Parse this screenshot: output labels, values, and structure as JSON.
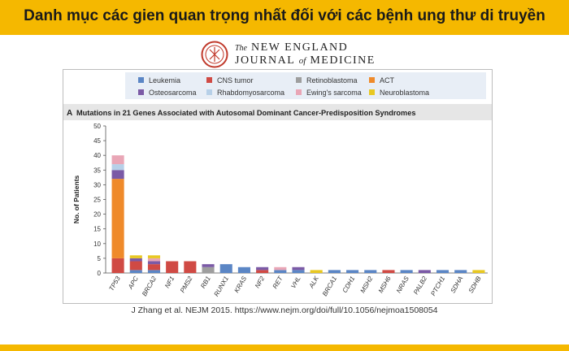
{
  "banner": {
    "title": "Danh mục các gien quan trọng nhất đối với các bệnh ung thư di truyền"
  },
  "logo": {
    "line1_prefix": "The",
    "line1_rest": "NEW ENGLAND",
    "line2_pre": "JOURNAL",
    "line2_of": "of",
    "line2_post": "MEDICINE",
    "seal_icon": "nejm-seal-icon"
  },
  "citation": {
    "text": "J Zhang et al. NEJM 2015. https://www.nejm.org/doi/full/10.1056/nejmoa1508054"
  },
  "colors": {
    "banner": "#f5b800",
    "Leukemia": "#5b86c5",
    "CNS tumor": "#d04a44",
    "Retinoblastoma": "#9e9e9e",
    "ACT": "#ef8a2a",
    "Osteosarcoma": "#7b5aa6",
    "Rhabdomyosarcoma": "#b7d0e8",
    "Ewing's sarcoma": "#e9a6b6",
    "Neuroblastoma": "#e8c822"
  },
  "chart_data": {
    "type": "bar",
    "stacked": true,
    "title": "Mutations in 21 Genes Associated with Autosomal Dominant Cancer-Predisposition Syndromes",
    "panel_label": "A",
    "xlabel": "",
    "ylabel": "No. of Patients",
    "ylim": [
      0,
      50
    ],
    "yticks": [
      0,
      5,
      10,
      15,
      20,
      25,
      30,
      35,
      40,
      45,
      50
    ],
    "grid": false,
    "legend_position": "top",
    "categories": [
      "TP53",
      "APC",
      "BRCA2",
      "NF1",
      "PMS2",
      "RB1",
      "RUNX1",
      "KRAS",
      "NF2",
      "RET",
      "VHL",
      "ALK",
      "BRCA1",
      "CDH1",
      "MSH2",
      "MSH6",
      "NRAS",
      "PALB2",
      "PTCH1",
      "SDHA",
      "SDHB"
    ],
    "series": [
      {
        "name": "Leukemia",
        "values": [
          0,
          1,
          1,
          0,
          0,
          0,
          3,
          2,
          0,
          1,
          1,
          0,
          1,
          1,
          1,
          0,
          1,
          0,
          1,
          1,
          0
        ]
      },
      {
        "name": "CNS tumor",
        "values": [
          5,
          3,
          2,
          4,
          4,
          0,
          0,
          0,
          1,
          0,
          0,
          0,
          0,
          0,
          0,
          1,
          0,
          0,
          0,
          0,
          0
        ]
      },
      {
        "name": "Retinoblastoma",
        "values": [
          0,
          0,
          0,
          0,
          0,
          2,
          0,
          0,
          0,
          0,
          0,
          0,
          0,
          0,
          0,
          0,
          0,
          0,
          0,
          0,
          0
        ]
      },
      {
        "name": "ACT",
        "values": [
          27,
          0,
          0,
          0,
          0,
          0,
          0,
          0,
          0,
          0,
          0,
          0,
          0,
          0,
          0,
          0,
          0,
          0,
          0,
          0,
          0
        ]
      },
      {
        "name": "Osteosarcoma",
        "values": [
          3,
          1,
          1,
          0,
          0,
          1,
          0,
          0,
          1,
          0,
          1,
          0,
          0,
          0,
          0,
          0,
          0,
          1,
          0,
          0,
          0
        ]
      },
      {
        "name": "Rhabdomyosarcoma",
        "values": [
          2,
          0,
          0,
          0,
          0,
          0,
          0,
          0,
          0,
          0,
          0,
          0,
          0,
          0,
          0,
          0,
          0,
          0,
          0,
          0,
          0
        ]
      },
      {
        "name": "Ewing's sarcoma",
        "values": [
          3,
          0,
          1,
          0,
          0,
          0,
          0,
          0,
          0,
          1,
          0,
          0,
          0,
          0,
          0,
          0,
          0,
          0,
          0,
          0,
          0
        ]
      },
      {
        "name": "Neuroblastoma",
        "values": [
          0,
          1,
          1,
          0,
          0,
          0,
          0,
          0,
          0,
          0,
          0,
          1,
          0,
          0,
          0,
          0,
          0,
          0,
          0,
          0,
          1
        ]
      }
    ]
  }
}
